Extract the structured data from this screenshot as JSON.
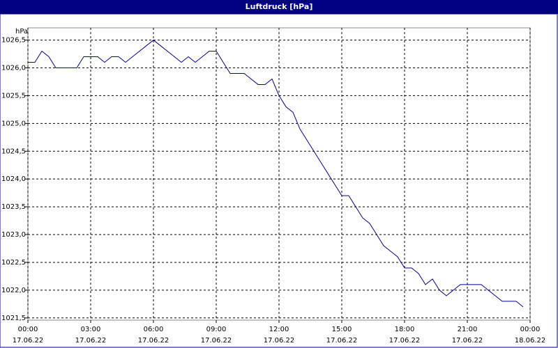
{
  "chart_data": {
    "type": "line",
    "title": "Luftdruck [hPa]",
    "ylabel": "hPa",
    "x": [
      0,
      20,
      40,
      60,
      80,
      100,
      120,
      140,
      160,
      180,
      200,
      220,
      240,
      260,
      280,
      300,
      320,
      340,
      360,
      380,
      400,
      420,
      440,
      460,
      480,
      500,
      520,
      540,
      560,
      580,
      600,
      620,
      640,
      660,
      680,
      700,
      720,
      740,
      760,
      780,
      800,
      820,
      840,
      860,
      880,
      900,
      920,
      940,
      960,
      980,
      1000,
      1020,
      1040,
      1060,
      1080,
      1100,
      1120,
      1140,
      1160,
      1180,
      1200,
      1220,
      1240,
      1260,
      1280,
      1300,
      1320,
      1340,
      1360,
      1380,
      1400,
      1420
    ],
    "series": [
      {
        "name": "Luftdruck",
        "color": "#00008b",
        "values": [
          1026.1,
          1026.1,
          1026.3,
          1026.2,
          1026.0,
          1026.0,
          1026.0,
          1026.0,
          1026.2,
          1026.2,
          1026.2,
          1026.1,
          1026.2,
          1026.2,
          1026.1,
          1026.2,
          1026.3,
          1026.4,
          1026.5,
          1026.4,
          1026.3,
          1026.2,
          1026.1,
          1026.2,
          1026.1,
          1026.2,
          1026.3,
          1026.3,
          1026.1,
          1025.9,
          1025.9,
          1025.9,
          1025.8,
          1025.7,
          1025.7,
          1025.8,
          1025.5,
          1025.3,
          1025.2,
          1024.9,
          1024.7,
          1024.5,
          1024.3,
          1024.1,
          1023.9,
          1023.7,
          1023.7,
          1023.5,
          1023.3,
          1023.2,
          1023.0,
          1022.8,
          1022.7,
          1022.6,
          1022.4,
          1022.4,
          1022.3,
          1022.1,
          1022.2,
          1022.0,
          1021.9,
          1022.0,
          1022.1,
          1022.1,
          1022.1,
          1022.1,
          1022.0,
          1021.9,
          1021.8,
          1021.8,
          1021.8,
          1021.7
        ]
      }
    ],
    "xlim": [
      0,
      1440
    ],
    "xticks": [
      {
        "value": 0,
        "label": "00:00"
      },
      {
        "value": 180,
        "label": "03:00"
      },
      {
        "value": 360,
        "label": "06:00"
      },
      {
        "value": 540,
        "label": "09:00"
      },
      {
        "value": 720,
        "label": "12:00"
      },
      {
        "value": 900,
        "label": "15:00"
      },
      {
        "value": 1080,
        "label": "18:00"
      },
      {
        "value": 1260,
        "label": "21:00"
      },
      {
        "value": 1440,
        "label": "00:00"
      }
    ],
    "xtick_dates": [
      "17.06.22",
      "17.06.22",
      "17.06.22",
      "17.06.22",
      "17.06.22",
      "17.06.22",
      "17.06.22",
      "17.06.22",
      "18.06.22"
    ],
    "ylim": [
      1021.46,
      1026.72
    ],
    "yticks": [
      {
        "value": 1021.5,
        "label": "1021,5"
      },
      {
        "value": 1022,
        "label": "1022,0"
      },
      {
        "value": 1022.5,
        "label": "1022,5"
      },
      {
        "value": 1023,
        "label": "1023,0"
      },
      {
        "value": 1023.5,
        "label": "1023,5"
      },
      {
        "value": 1024,
        "label": "1024,0"
      },
      {
        "value": 1024.5,
        "label": "1024,5"
      },
      {
        "value": 1025,
        "label": "1025,0"
      },
      {
        "value": 1025.5,
        "label": "1025,5"
      },
      {
        "value": 1026,
        "label": "1026,0"
      },
      {
        "value": 1026.5,
        "label": "1026,5"
      }
    ],
    "grid": true
  }
}
